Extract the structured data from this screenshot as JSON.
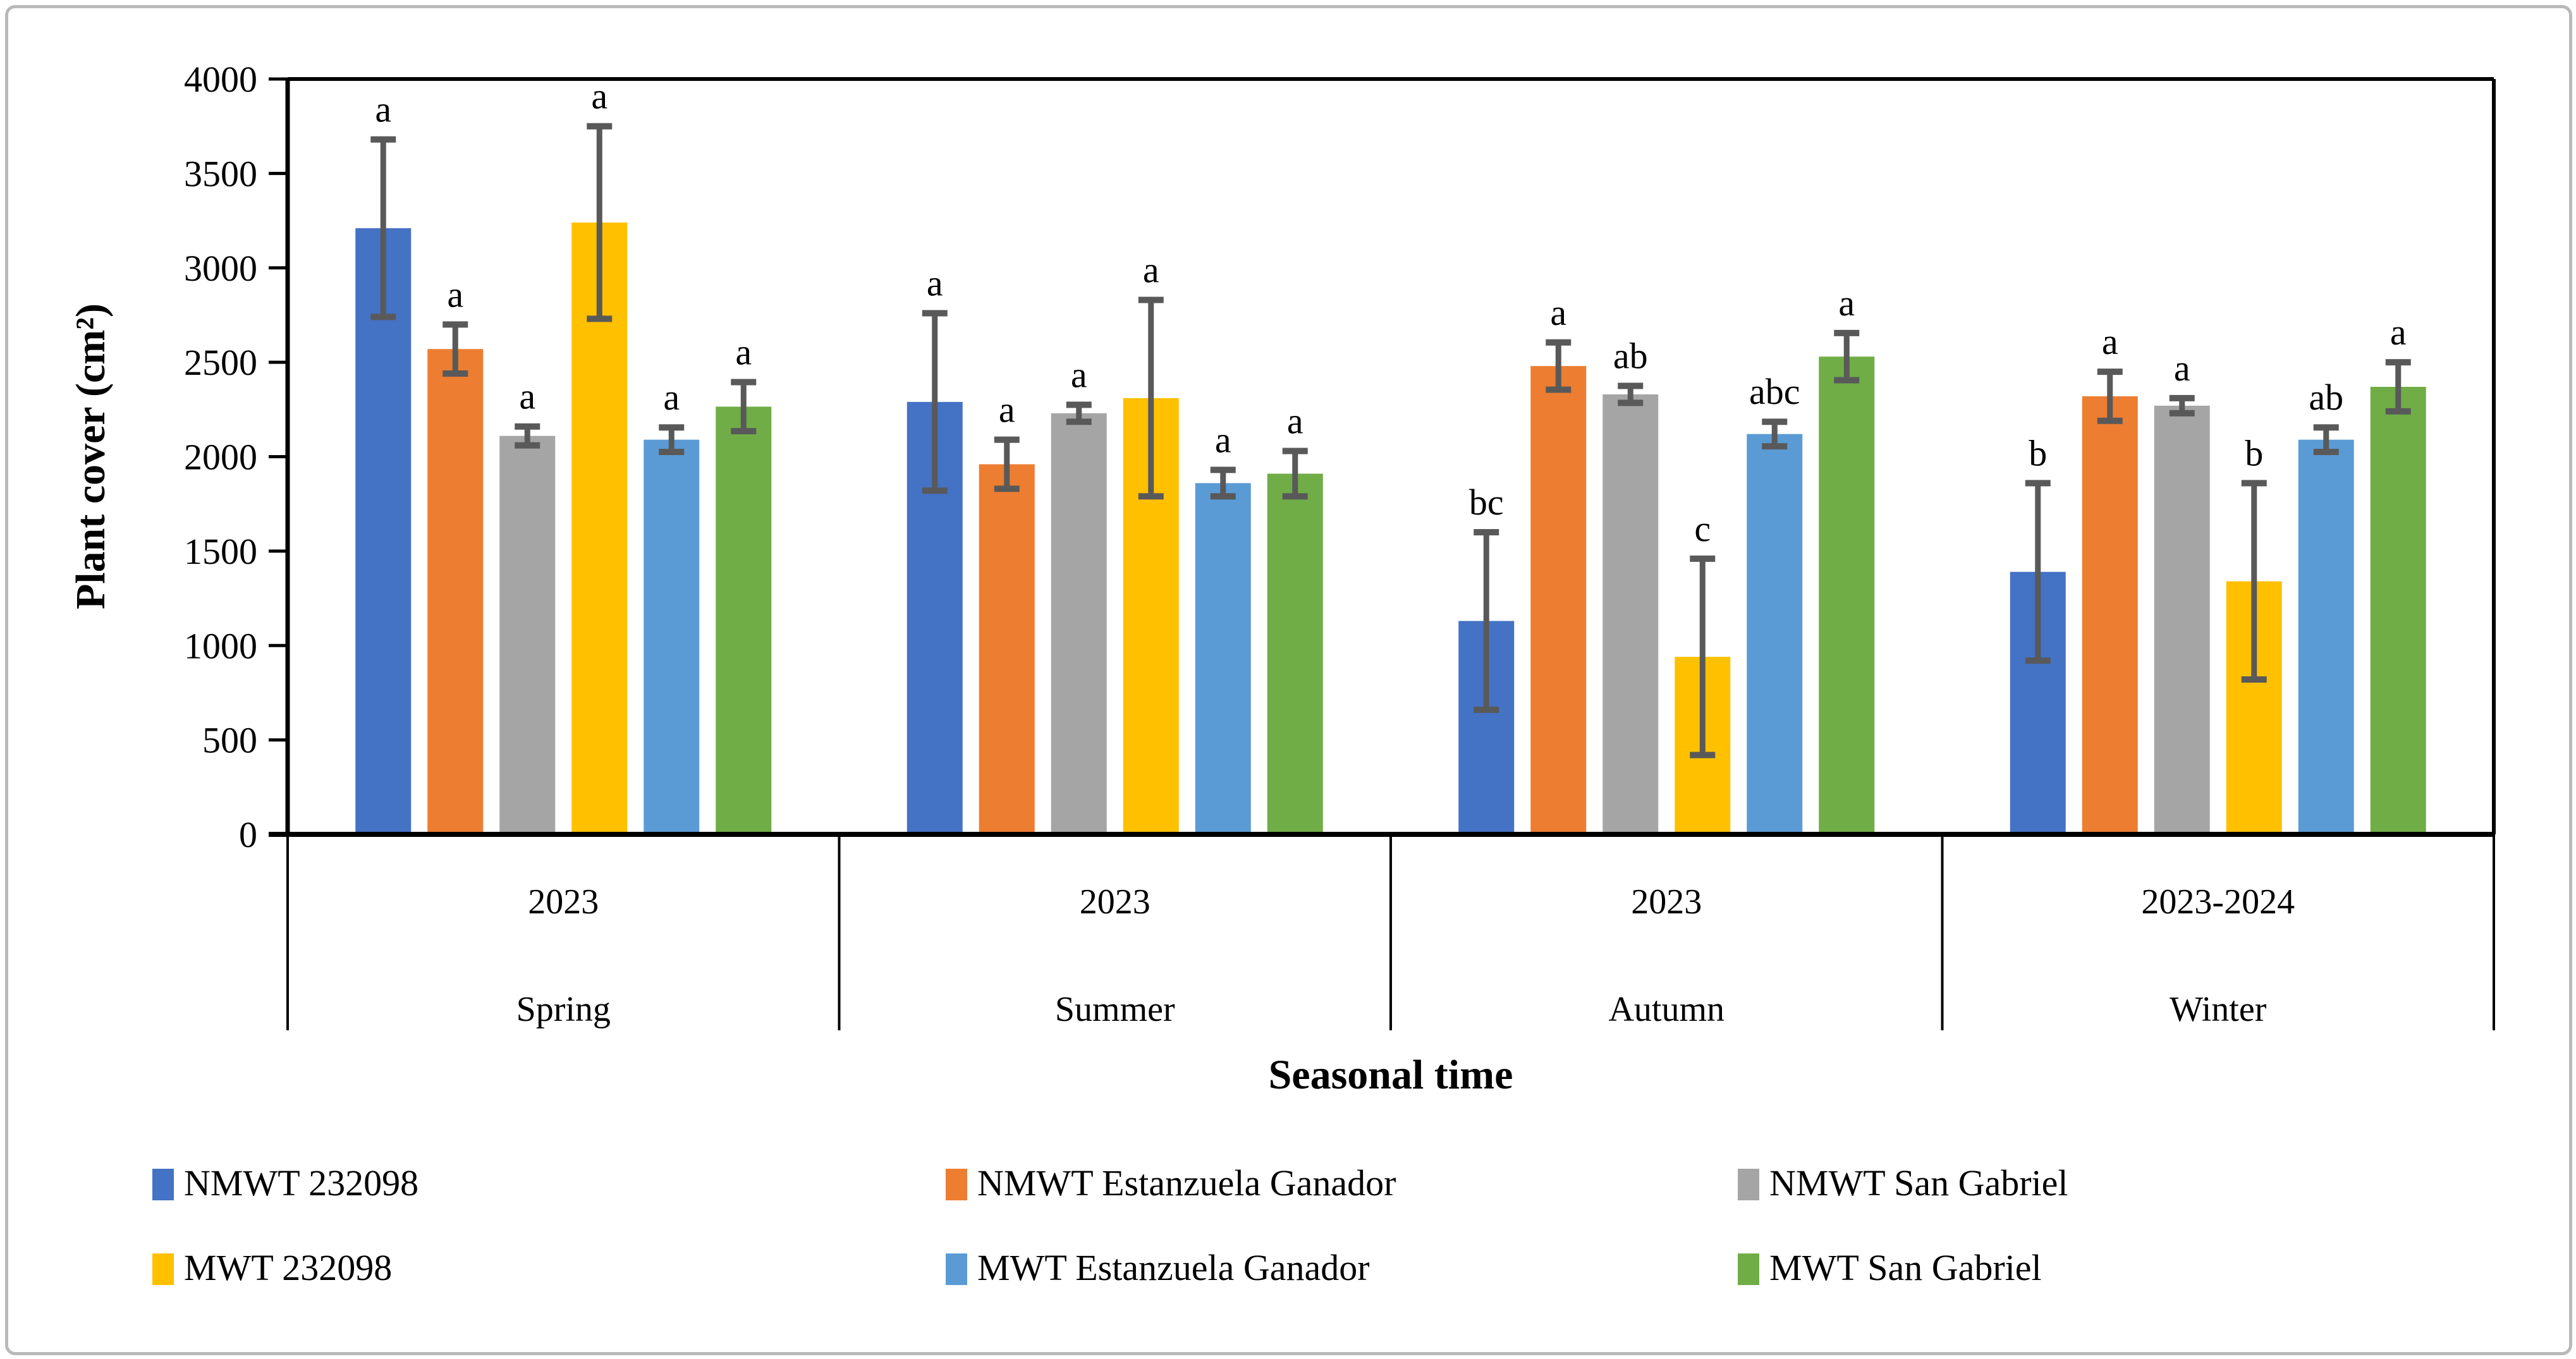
{
  "figure": {
    "background_color": "#ffffff",
    "border_color": "#b9b9b9"
  },
  "chart_data": {
    "type": "bar",
    "title": "",
    "ylabel": "Plant cover (cm²)",
    "xlabel": "Seasonal time",
    "ylim": [
      0,
      4000
    ],
    "yticks": [
      0,
      500,
      1000,
      1500,
      2000,
      2500,
      3000,
      3500,
      4000
    ],
    "grid": false,
    "legend_position": "bottom",
    "axis_color": "#000000",
    "error_bar_color": "#595959",
    "groups": [
      {
        "year": "2023",
        "season": "Spring"
      },
      {
        "year": "2023",
        "season": "Summer"
      },
      {
        "year": "2023",
        "season": "Autumn"
      },
      {
        "year": "2023-2024",
        "season": "Winter"
      }
    ],
    "series": [
      {
        "name": "NMWT 232098",
        "color": "#4472C4",
        "values": [
          3210,
          2290,
          1130,
          1390
        ],
        "errors": [
          470,
          470,
          470,
          470
        ],
        "letters": [
          "a",
          "a",
          "bc",
          "b"
        ]
      },
      {
        "name": "NMWT Estanzuela Ganador",
        "color": "#ED7D31",
        "values": [
          2570,
          1960,
          2480,
          2320
        ],
        "errors": [
          130,
          130,
          125,
          130
        ],
        "letters": [
          "a",
          "a",
          "a",
          "a"
        ]
      },
      {
        "name": "NMWT San Gabriel",
        "color": "#A5A5A5",
        "values": [
          2110,
          2230,
          2330,
          2270
        ],
        "errors": [
          50,
          45,
          45,
          40
        ],
        "letters": [
          "a",
          "a",
          "ab",
          "a"
        ]
      },
      {
        "name": "MWT 232098",
        "color": "#FFC000",
        "values": [
          3240,
          2310,
          940,
          1340
        ],
        "errors": [
          510,
          520,
          520,
          520
        ],
        "letters": [
          "a",
          "a",
          "c",
          "b"
        ]
      },
      {
        "name": "MWT Estanzuela Ganador",
        "color": "#5B9BD5",
        "values": [
          2090,
          1860,
          2120,
          2090
        ],
        "errors": [
          65,
          70,
          65,
          65
        ],
        "letters": [
          "a",
          "a",
          "abc",
          "ab"
        ]
      },
      {
        "name": "MWT San Gabriel",
        "color": "#70AD47",
        "values": [
          2265,
          1910,
          2530,
          2370
        ],
        "errors": [
          130,
          120,
          125,
          130
        ],
        "letters": [
          "a",
          "a",
          "a",
          "a"
        ]
      }
    ]
  }
}
